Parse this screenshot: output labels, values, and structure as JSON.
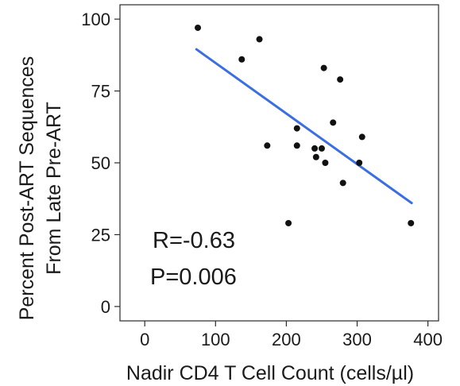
{
  "chart_data": {
    "type": "scatter",
    "title": "",
    "xlabel": "Nadir CD4 T Cell Count (cells/µl)",
    "ylabel_lines": [
      "Percent Post-ART Sequences",
      "From Late Pre-ART"
    ],
    "xlim": [
      -35,
      415
    ],
    "ylim": [
      -5,
      105
    ],
    "xticks": [
      0,
      100,
      200,
      300,
      400
    ],
    "yticks": [
      0,
      25,
      50,
      75,
      100
    ],
    "grid": false,
    "legend": "none",
    "point_color": "#111111",
    "line_color": "#3b6fe0",
    "points": [
      {
        "x": 75,
        "y": 97
      },
      {
        "x": 137,
        "y": 86
      },
      {
        "x": 162,
        "y": 93
      },
      {
        "x": 173,
        "y": 56
      },
      {
        "x": 203,
        "y": 29
      },
      {
        "x": 215,
        "y": 62
      },
      {
        "x": 215,
        "y": 56
      },
      {
        "x": 240,
        "y": 55
      },
      {
        "x": 242,
        "y": 52
      },
      {
        "x": 250,
        "y": 55
      },
      {
        "x": 253,
        "y": 83
      },
      {
        "x": 255,
        "y": 50
      },
      {
        "x": 266,
        "y": 64
      },
      {
        "x": 276,
        "y": 79
      },
      {
        "x": 280,
        "y": 43
      },
      {
        "x": 303,
        "y": 50
      },
      {
        "x": 307,
        "y": 59
      },
      {
        "x": 376,
        "y": 29
      }
    ],
    "fit_line": {
      "x": [
        73,
        377
      ],
      "y": [
        89.5,
        36
      ]
    },
    "annotations": [
      "R=-0.63",
      "P=0.006"
    ]
  }
}
